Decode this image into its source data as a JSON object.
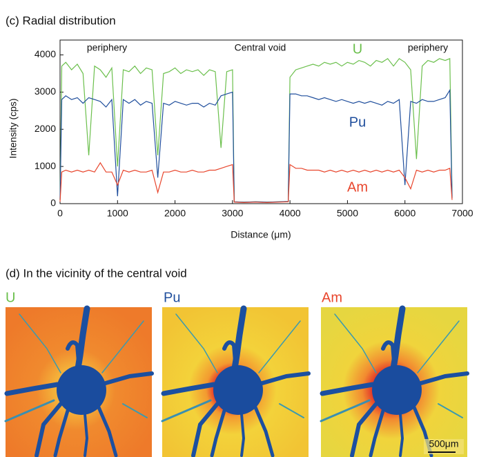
{
  "chart_data": {
    "type": "line",
    "title": "(c) Radial distribution",
    "x_label": "Distance (μm)",
    "y_label": "Intensity (cps)",
    "annotations": [
      "periphery",
      "Central void",
      "periphery"
    ],
    "xlim": [
      0,
      7000
    ],
    "xticks": [
      0,
      1000,
      2000,
      3000,
      4000,
      5000,
      6000,
      7000
    ],
    "ylim": [
      0,
      4400
    ],
    "yticks": [
      0,
      1000,
      2000,
      3000,
      4000
    ],
    "x": [
      0,
      30,
      100,
      200,
      300,
      400,
      500,
      600,
      700,
      800,
      900,
      1000,
      1100,
      1200,
      1300,
      1400,
      1500,
      1600,
      1700,
      1800,
      1900,
      2000,
      2100,
      2200,
      2300,
      2400,
      2500,
      2600,
      2700,
      2800,
      2900,
      3000,
      3030,
      3200,
      3400,
      3600,
      3800,
      3970,
      4000,
      4100,
      4200,
      4300,
      4400,
      4500,
      4600,
      4700,
      4800,
      4900,
      5000,
      5100,
      5200,
      5300,
      5400,
      5500,
      5600,
      5700,
      5800,
      5900,
      6000,
      6100,
      6200,
      6300,
      6400,
      6500,
      6600,
      6700,
      6780,
      6820
    ],
    "series": [
      {
        "name": "U",
        "color": "#6abf4b",
        "values": [
          100,
          3700,
          3800,
          3600,
          3750,
          3500,
          1300,
          3700,
          3600,
          3400,
          3650,
          1000,
          3600,
          3550,
          3700,
          3500,
          3650,
          3600,
          1300,
          3500,
          3550,
          3650,
          3500,
          3600,
          3550,
          3600,
          3450,
          3600,
          3550,
          1500,
          3550,
          3600,
          50,
          40,
          50,
          40,
          50,
          60,
          3400,
          3600,
          3650,
          3700,
          3750,
          3700,
          3800,
          3750,
          3800,
          3700,
          3800,
          3750,
          3850,
          3800,
          3700,
          3850,
          3800,
          3900,
          3700,
          3900,
          3800,
          3600,
          1200,
          3700,
          3850,
          3800,
          3900,
          3850,
          3900,
          200
        ]
      },
      {
        "name": "Pu",
        "color": "#1f4e9c",
        "values": [
          100,
          2800,
          2900,
          2800,
          2850,
          2700,
          2850,
          2800,
          2750,
          2600,
          2800,
          200,
          2800,
          2700,
          2800,
          2650,
          2750,
          2700,
          700,
          2700,
          2650,
          2750,
          2700,
          2650,
          2700,
          2700,
          2600,
          2700,
          2650,
          2900,
          2950,
          3000,
          50,
          40,
          50,
          40,
          50,
          60,
          2950,
          2950,
          2900,
          2900,
          2850,
          2800,
          2850,
          2800,
          2750,
          2800,
          2750,
          2700,
          2750,
          2700,
          2750,
          2700,
          2650,
          2750,
          2700,
          2800,
          500,
          2750,
          2700,
          2800,
          2750,
          2750,
          2800,
          2850,
          3050,
          150
        ]
      },
      {
        "name": "Am",
        "color": "#e8452c",
        "values": [
          50,
          850,
          900,
          850,
          900,
          850,
          900,
          850,
          1100,
          850,
          850,
          500,
          900,
          850,
          900,
          850,
          850,
          900,
          300,
          850,
          850,
          900,
          850,
          850,
          900,
          850,
          850,
          900,
          900,
          950,
          1000,
          1050,
          40,
          30,
          40,
          30,
          40,
          50,
          1050,
          950,
          950,
          900,
          900,
          900,
          850,
          900,
          850,
          900,
          850,
          900,
          850,
          900,
          850,
          900,
          850,
          900,
          850,
          900,
          700,
          400,
          900,
          850,
          900,
          850,
          900,
          900,
          950,
          100
        ]
      }
    ]
  },
  "panel_d": {
    "title": "(d) In the vicinity of the central void",
    "panels": [
      {
        "label": "U"
      },
      {
        "label": "Pu"
      },
      {
        "label": "Am"
      }
    ],
    "scale_bar": "500μm"
  }
}
